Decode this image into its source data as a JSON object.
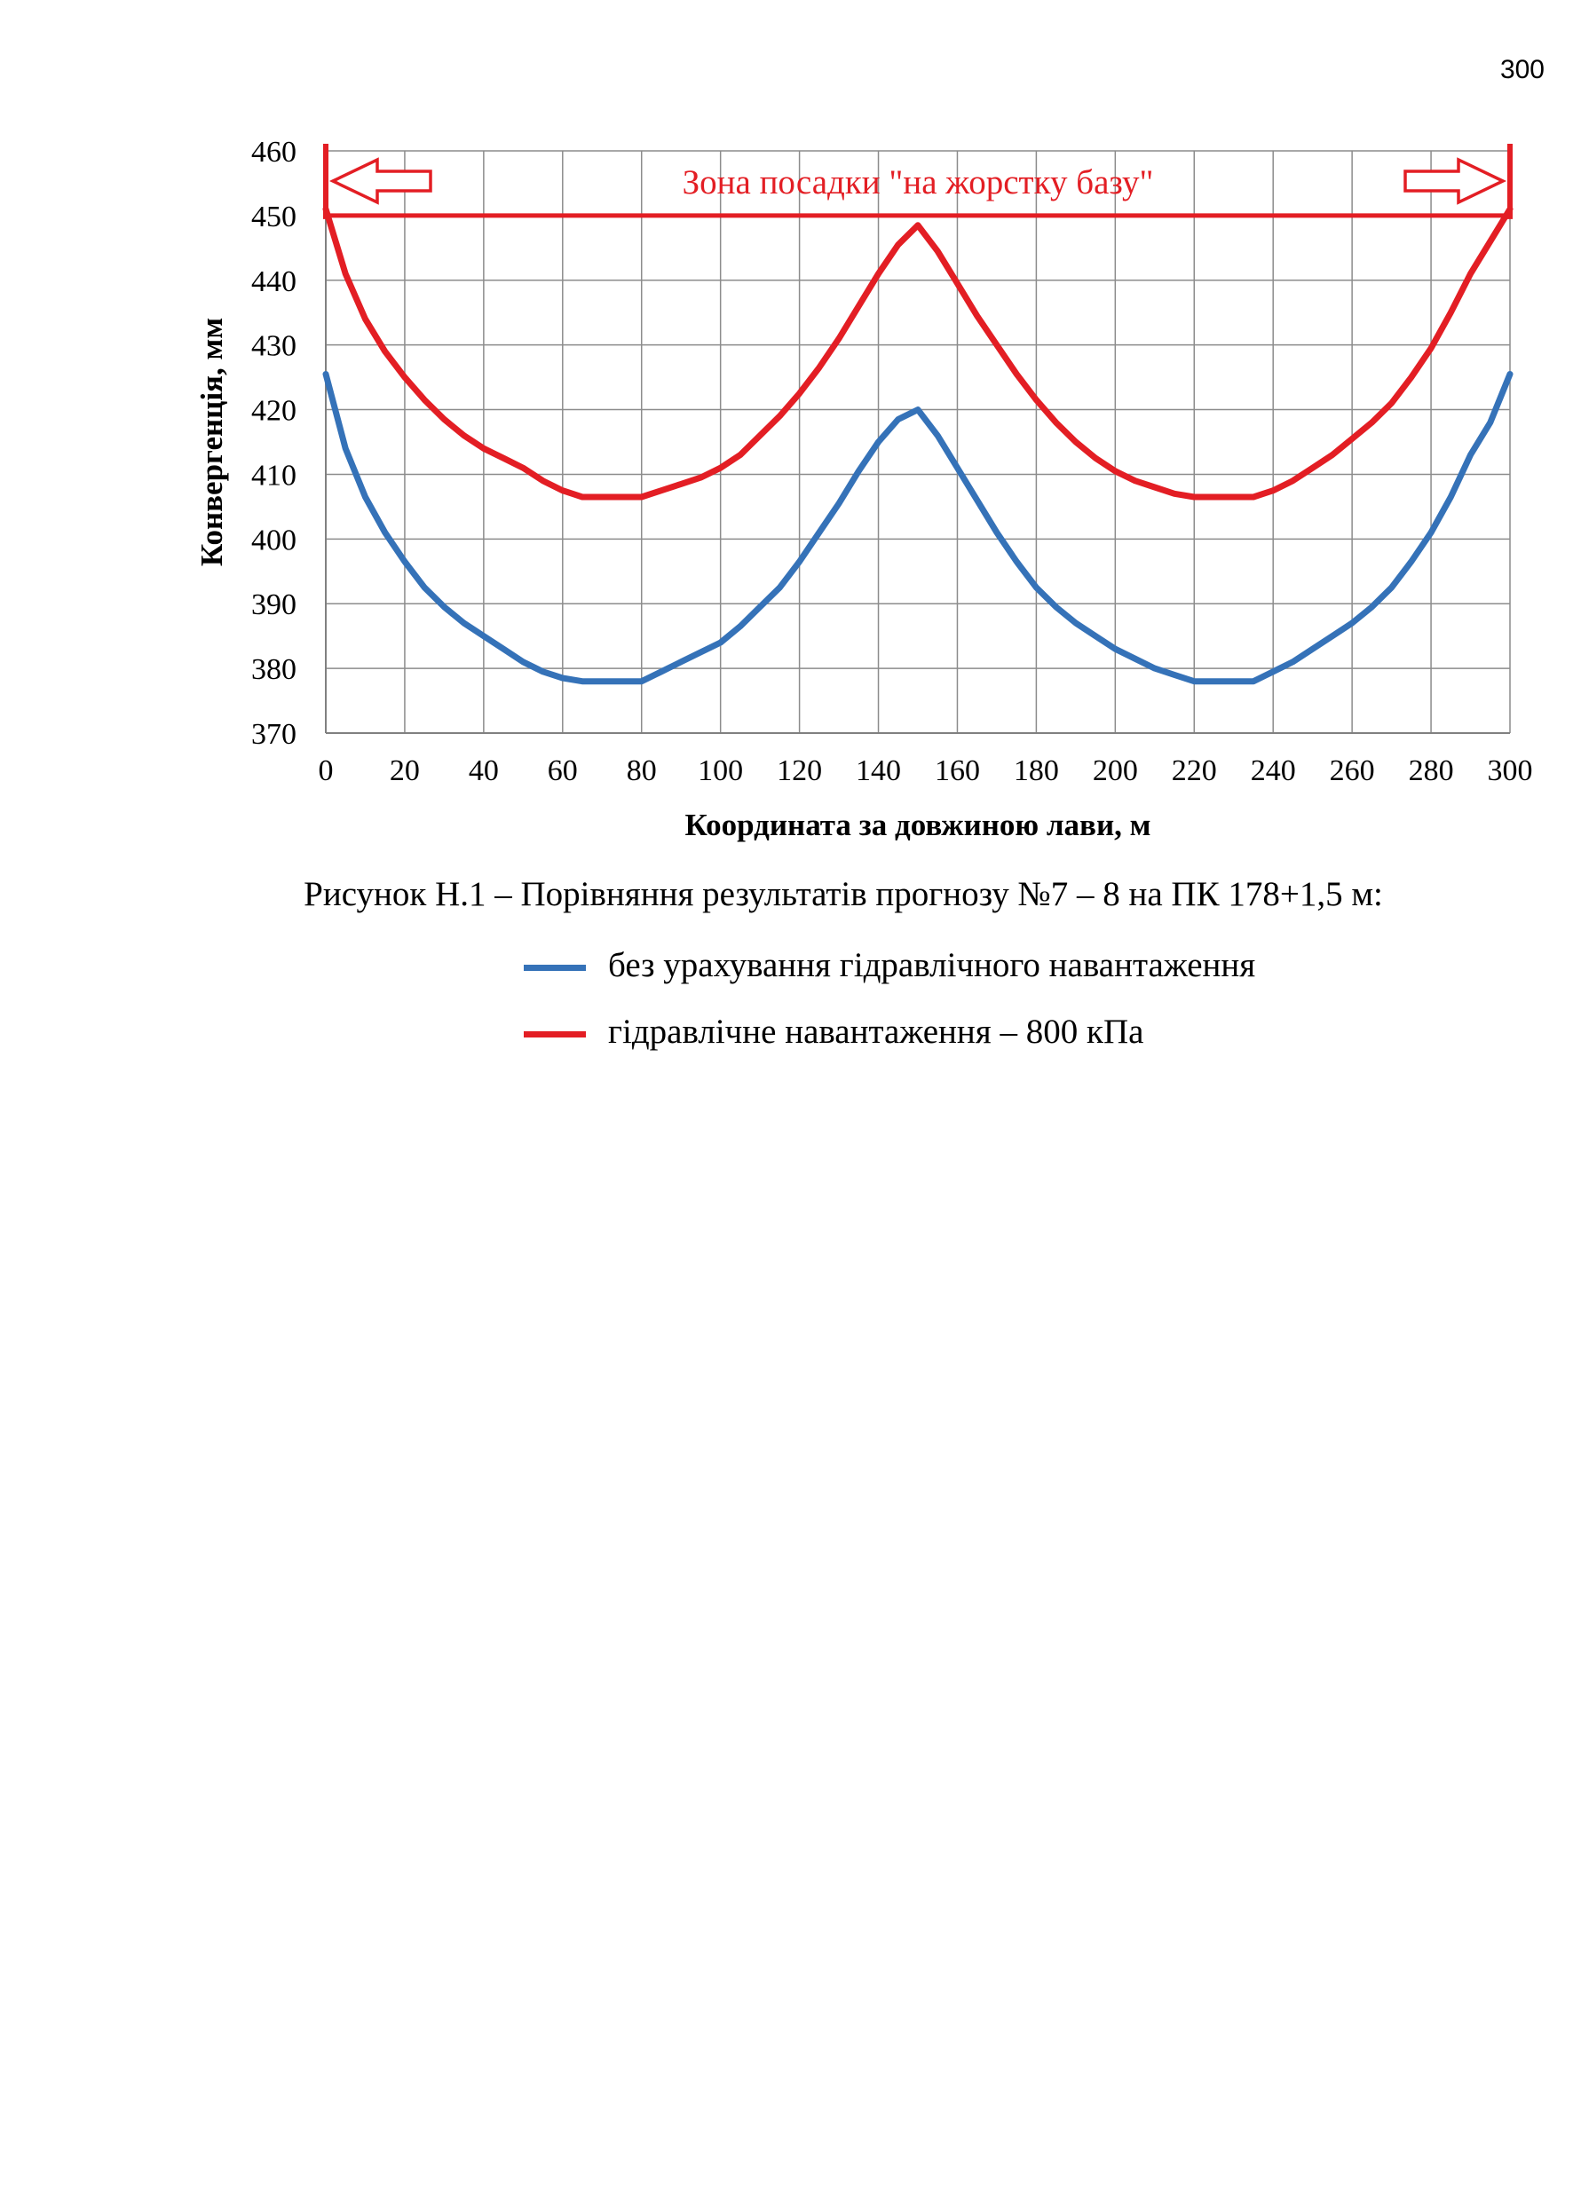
{
  "page": {
    "number": "300"
  },
  "chart_data": {
    "type": "line",
    "xlabel": "Координата за довжиною лави, м",
    "ylabel": "Конвергенція, мм",
    "xlim": [
      0,
      300
    ],
    "ylim": [
      370,
      460
    ],
    "x_ticks": [
      "0",
      "20",
      "40",
      "60",
      "80",
      "100",
      "120",
      "140",
      "160",
      "180",
      "200",
      "220",
      "240",
      "260",
      "280",
      "300"
    ],
    "y_ticks": [
      "460",
      "450",
      "440",
      "430",
      "420",
      "410",
      "400",
      "390",
      "380",
      "370"
    ],
    "grid": true,
    "annotation": {
      "text": "Зона посадки \"на жорстку базу\"",
      "level": 450,
      "color": "#e31e24"
    },
    "x": [
      0,
      5,
      10,
      15,
      20,
      25,
      30,
      35,
      40,
      45,
      50,
      55,
      60,
      65,
      70,
      75,
      80,
      85,
      90,
      95,
      100,
      105,
      110,
      115,
      120,
      125,
      130,
      135,
      140,
      145,
      150,
      155,
      160,
      165,
      170,
      175,
      180,
      185,
      190,
      195,
      200,
      205,
      210,
      215,
      220,
      225,
      230,
      235,
      240,
      245,
      250,
      255,
      260,
      265,
      270,
      275,
      280,
      285,
      290,
      295,
      300
    ],
    "series": [
      {
        "name": "без урахування гідравлічного навантаження",
        "color": "#3572b8",
        "values": [
          425.5,
          414,
          406.5,
          401,
          396.5,
          392.5,
          389.5,
          387,
          385,
          383,
          381,
          379.5,
          378.5,
          378,
          378,
          378,
          378,
          379.5,
          381,
          382.5,
          384,
          386.5,
          389.5,
          392.5,
          396.5,
          401,
          405.5,
          410.5,
          415,
          418.5,
          420,
          416,
          411,
          406,
          401,
          396.5,
          392.5,
          389.5,
          387,
          385,
          383,
          381.5,
          380,
          379,
          378,
          378,
          378,
          378,
          379.5,
          381,
          383,
          385,
          387,
          389.5,
          392.5,
          396.5,
          401,
          406.5,
          413,
          418,
          425.5
        ]
      },
      {
        "name": "гідравлічне навантаження – 800 кПа",
        "color": "#e31e24",
        "values": [
          451,
          441,
          434,
          429,
          425,
          421.5,
          418.5,
          416,
          414,
          412.5,
          411,
          409,
          407.5,
          406.5,
          406.5,
          406.5,
          406.5,
          407.5,
          408.5,
          409.5,
          411,
          413,
          416,
          419,
          422.5,
          426.5,
          431,
          436,
          441,
          445.5,
          448.5,
          444.5,
          439.5,
          434.5,
          430,
          425.5,
          421.5,
          418,
          415,
          412.5,
          410.5,
          409,
          408,
          407,
          406.5,
          406.5,
          406.5,
          406.5,
          407.5,
          409,
          411,
          413,
          415.5,
          418,
          421,
          425,
          429.5,
          435,
          441,
          446,
          451
        ]
      }
    ]
  },
  "caption": "Рисунок Н.1 – Порівняння результатів прогнозу №7 – 8 на ПК 178+1,5 м:",
  "legend": [
    {
      "label": "без урахування гідравлічного навантаження",
      "color": "#3572b8"
    },
    {
      "label": "гідравлічне навантаження – 800 кПа",
      "color": "#e31e24"
    }
  ]
}
